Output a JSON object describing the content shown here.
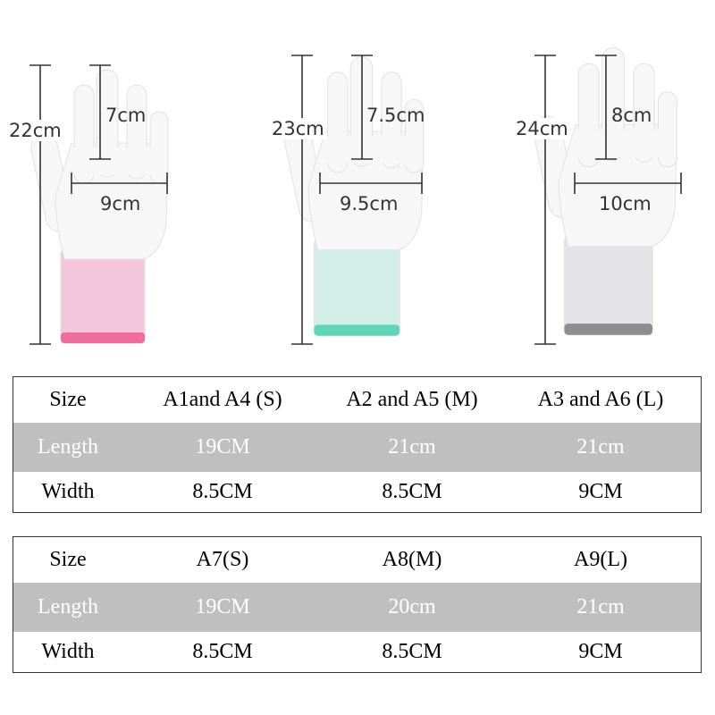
{
  "gloves": [
    {
      "size": "S",
      "cuff_color": "#f3c6dc",
      "band_color": "#f06c9b",
      "total_length": "22cm",
      "finger_length": "7cm",
      "palm_width": "9cm"
    },
    {
      "size": "M",
      "cuff_color": "#d3efe8",
      "band_color": "#5fd6b8",
      "total_length": "23cm",
      "finger_length": "7.5cm",
      "palm_width": "9.5cm"
    },
    {
      "size": "L",
      "cuff_color": "#e4e4e8",
      "band_color": "#8e8e92",
      "total_length": "24cm",
      "finger_length": "8cm",
      "palm_width": "10cm"
    }
  ],
  "tables": [
    {
      "header": [
        "Size",
        "A1and A4 (S)",
        "A2 and A5 (M)",
        "A3 and A6 (L)"
      ],
      "rows": [
        [
          "Length",
          "19CM",
          "21cm",
          "21cm"
        ],
        [
          "Width",
          "8.5CM",
          "8.5CM",
          "9CM"
        ]
      ]
    },
    {
      "header": [
        "Size",
        "A7(S)",
        "A8(M)",
        "A9(L)"
      ],
      "rows": [
        [
          "Length",
          "19CM",
          "20cm",
          "21cm"
        ],
        [
          "Width",
          "8.5CM",
          "8.5CM",
          "9CM"
        ]
      ]
    }
  ],
  "colors": {
    "row_highlight": "#bfbfbf",
    "border": "#333333"
  }
}
